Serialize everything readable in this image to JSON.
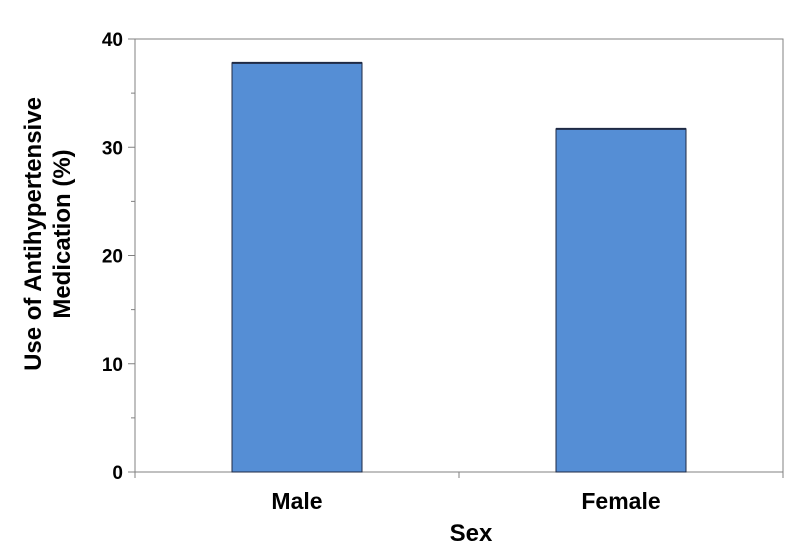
{
  "chart_data": {
    "type": "bar",
    "title": "",
    "categories": [
      "Male",
      "Female"
    ],
    "values": [
      37.8,
      31.7
    ],
    "xlabel": "Sex",
    "ylabel_lines": [
      "Use of Antihypertensive",
      "Medication (%)"
    ],
    "ylim": [
      0,
      40
    ],
    "y_major_ticks": [
      0,
      10,
      20,
      30,
      40
    ],
    "y_minor_step": 5,
    "grid": false,
    "legend": "none",
    "colors": {
      "bar": "#558ED5",
      "bar_edge": "#1F2A44",
      "axis": "#808080"
    }
  }
}
